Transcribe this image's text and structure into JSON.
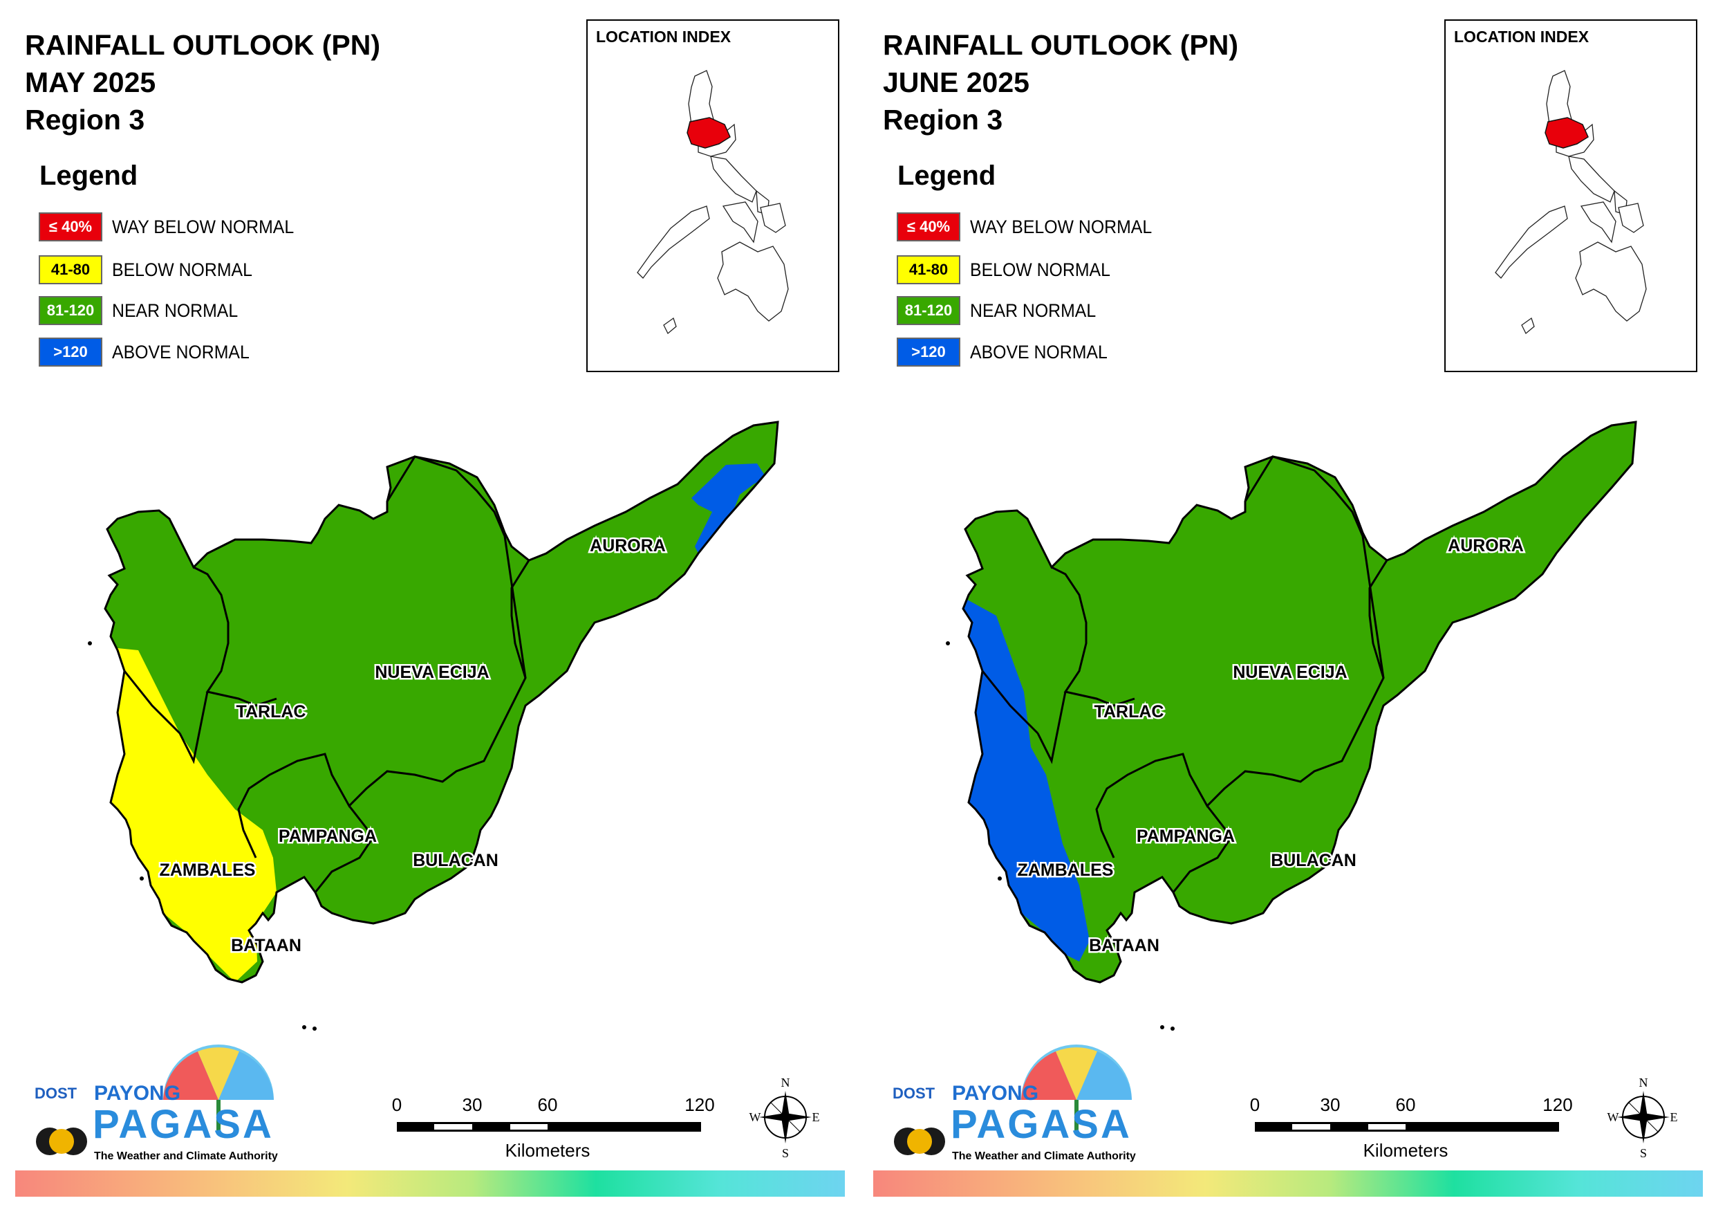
{
  "panels": [
    {
      "title_line1": "RAINFALL OUTLOOK (PN)",
      "title_line2": "MAY 2025",
      "title_line3": "Region 3",
      "legend_title": "Legend",
      "legend": [
        {
          "code": "≤ 40%",
          "label": "WAY BELOW NORMAL",
          "color": "#e8000b"
        },
        {
          "code": "41-80",
          "label": "BELOW NORMAL",
          "color": "#ffff00"
        },
        {
          "code": "81-120",
          "label": "NEAR NORMAL",
          "color": "#38a800"
        },
        {
          "code": ">120",
          "label": "ABOVE NORMAL",
          "color": "#005ce6"
        }
      ],
      "index_title": "LOCATION INDEX",
      "provinces": [
        "AURORA",
        "NUEVA ECIJA",
        "TARLAC",
        "PAMPANGA",
        "BULACAN",
        "ZAMBALES",
        "BATAAN"
      ],
      "scale": {
        "ticks": [
          "0",
          "30",
          "60",
          "120"
        ],
        "unit": "Kilometers"
      },
      "compass": {
        "n": "N",
        "s": "S",
        "e": "E",
        "w": "W"
      },
      "logo": {
        "dost": "DOST",
        "payong": "PAYONG",
        "pagasa": "PAGASA",
        "tagline": "The Weather and Climate Authority"
      }
    },
    {
      "title_line1": "RAINFALL OUTLOOK (PN)",
      "title_line2": "JUNE 2025",
      "title_line3": "Region 3",
      "legend_title": "Legend",
      "legend": [
        {
          "code": "≤ 40%",
          "label": "WAY BELOW NORMAL",
          "color": "#e8000b"
        },
        {
          "code": "41-80",
          "label": "BELOW NORMAL",
          "color": "#ffff00"
        },
        {
          "code": "81-120",
          "label": "NEAR NORMAL",
          "color": "#38a800"
        },
        {
          "code": ">120",
          "label": "ABOVE NORMAL",
          "color": "#005ce6"
        }
      ],
      "index_title": "LOCATION INDEX",
      "provinces": [
        "AURORA",
        "NUEVA ECIJA",
        "TARLAC",
        "PAMPANGA",
        "BULACAN",
        "ZAMBALES",
        "BATAAN"
      ],
      "scale": {
        "ticks": [
          "0",
          "30",
          "60",
          "120"
        ],
        "unit": "Kilometers"
      },
      "compass": {
        "n": "N",
        "s": "S",
        "e": "E",
        "w": "W"
      },
      "logo": {
        "dost": "DOST",
        "payong": "PAYONG",
        "pagasa": "PAGASA",
        "tagline": "The Weather and Climate Authority"
      }
    }
  ]
}
